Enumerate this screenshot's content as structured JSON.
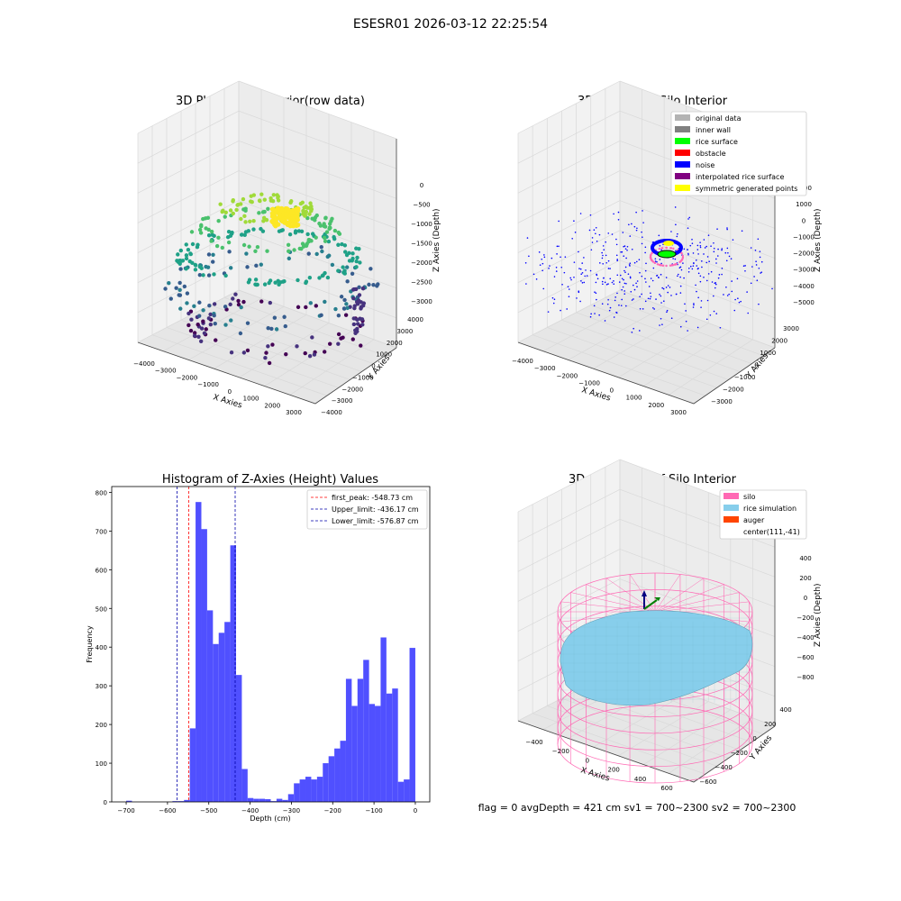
{
  "suptitle": "ESESR01 2026-03-12 22:25:54",
  "status_line": "flag = 0     avgDepth = 421 cm  sv1 = 700~2300  sv2 = 700~2300",
  "colors": {
    "hist_bar": "#4d4dff",
    "peak_line": "#ff0000",
    "limit_line": "#0000aa",
    "silo": "#ff69b4",
    "rice": "#87ceeb",
    "auger": "#ff4500",
    "pane": "#f2f2f2",
    "grid": "#d9d9d9"
  },
  "chart_data": [
    {
      "type": "scatter",
      "title": "3D Plot of Silo Interior(row data)",
      "xlabel": "X Axies",
      "ylabel": "Y Axies",
      "zlabel": "Z Axies (Depth)",
      "x_ticks": [
        "−4000",
        "−3000",
        "−2000",
        "−1000",
        "0",
        "1000",
        "2000",
        "3000"
      ],
      "y_ticks": [
        "−4000",
        "−3000",
        "−2000",
        "−1000",
        "0",
        "1000",
        "2000",
        "3000",
        "4000"
      ],
      "z_ticks": [
        "0",
        "−500",
        "−1000",
        "−1500",
        "−2000",
        "−2500",
        "−3000"
      ],
      "colormap": "viridis"
    },
    {
      "type": "scatter",
      "title": "3D classify of Silo Interior",
      "xlabel": "X Axies",
      "ylabel": "Y Axies",
      "zlabel": "Z Axies (Depth)",
      "x_ticks": [
        "−4000",
        "−3000",
        "−2000",
        "−1000",
        "0",
        "1000",
        "2000",
        "3000"
      ],
      "y_ticks": [
        "−3000",
        "−2000",
        "−1000",
        "0",
        "1000",
        "2000",
        "3000"
      ],
      "z_ticks": [
        "2000",
        "1000",
        "0",
        "−1000",
        "−2000",
        "−3000",
        "−4000",
        "−5000"
      ],
      "legend": [
        {
          "label": "original data",
          "color": "#b3b3b3"
        },
        {
          "label": "inner wall",
          "color": "#808080"
        },
        {
          "label": "rice surface",
          "color": "#00ff00"
        },
        {
          "label": "obstacle",
          "color": "#ff0000"
        },
        {
          "label": "noise",
          "color": "#0000ff"
        },
        {
          "label": "interpolated rice surface",
          "color": "#800080"
        },
        {
          "label": "symmetric generated points",
          "color": "#ffff00"
        }
      ]
    },
    {
      "type": "bar",
      "title": "Histogram of Z-Axies (Height) Values",
      "xlabel": "Depth (cm)",
      "ylabel": "Frequency",
      "xlim": [
        -735,
        35
      ],
      "ylim": [
        0,
        815
      ],
      "x_ticks": [
        -700,
        -600,
        -500,
        -400,
        -300,
        -200,
        -100,
        0
      ],
      "y_ticks": [
        0,
        100,
        200,
        300,
        400,
        500,
        600,
        700,
        800
      ],
      "bin_start": -700,
      "bin_width": 14,
      "values": [
        3,
        0,
        0,
        0,
        0,
        0,
        0,
        0,
        2,
        2,
        5,
        190,
        775,
        705,
        495,
        408,
        437,
        465,
        663,
        328,
        85,
        10,
        8,
        8,
        7,
        2,
        8,
        5,
        20,
        48,
        58,
        65,
        58,
        65,
        100,
        118,
        138,
        158,
        318,
        248,
        318,
        367,
        253,
        248,
        425,
        280,
        293,
        52,
        58,
        398
      ],
      "vlines": [
        {
          "label": "first_peak: -548.73 cm",
          "value": -548.73,
          "color": "#ff0000"
        },
        {
          "label": "Upper_limit: -436.17 cm",
          "value": -436.17,
          "color": "#0000aa"
        },
        {
          "label": "Lower_limit: -576.87 cm",
          "value": -576.87,
          "color": "#0000aa"
        }
      ]
    },
    {
      "type": "surface",
      "title": "3D simulation of Silo Interior",
      "xlabel": "X Axies",
      "ylabel": "Y Axies",
      "zlabel": "Z Axies (Depth)",
      "x_ticks": [
        "−400",
        "−200",
        "0",
        "200",
        "400",
        "600"
      ],
      "y_ticks": [
        "−600",
        "−400",
        "−200",
        "0",
        "200",
        "400"
      ],
      "z_ticks": [
        "400",
        "200",
        "0",
        "−200",
        "−400",
        "−600",
        "−800"
      ],
      "legend": [
        {
          "label": "silo",
          "color": "#ff69b4"
        },
        {
          "label": "rice simulation",
          "color": "#87ceeb"
        },
        {
          "label": "auger",
          "color": "#ff4500"
        },
        {
          "label": "center(111,-41)",
          "color": ""
        }
      ]
    }
  ]
}
